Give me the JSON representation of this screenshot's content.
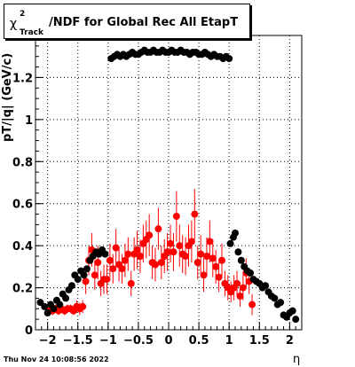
{
  "header": {
    "title_symbol": "χ",
    "title_sup": "2",
    "title_sub": "Track",
    "title_main": "/NDF for Global Rec All EtapT"
  },
  "footer": {
    "timestamp": "Thu Nov 24 10:08:56 2022"
  },
  "chart_data": {
    "type": "scatter",
    "title": "χ²_Track/NDF for Global Rec All EtapT",
    "xlabel": "η",
    "ylabel": "pT/|q| (GeV/c)",
    "xlim": [
      -2.2,
      2.2
    ],
    "ylim": [
      0,
      1.4
    ],
    "grid": true,
    "colors": {
      "black_series": "#000000",
      "red_series": "#ff0000"
    },
    "x_ticks": [
      {
        "value": -2,
        "label": "−2"
      },
      {
        "value": -1.5,
        "label": "−1.5"
      },
      {
        "value": -1,
        "label": "−1"
      },
      {
        "value": -0.5,
        "label": "−0.5"
      },
      {
        "value": 0,
        "label": "0"
      },
      {
        "value": 0.5,
        "label": "0.5"
      },
      {
        "value": 1,
        "label": "1"
      },
      {
        "value": 1.5,
        "label": "1.5"
      },
      {
        "value": 2,
        "label": "2"
      }
    ],
    "y_ticks": [
      {
        "value": 0,
        "label": "0"
      },
      {
        "value": 0.2,
        "label": "0.2"
      },
      {
        "value": 0.4,
        "label": "0.4"
      },
      {
        "value": 0.6,
        "label": "0.6"
      },
      {
        "value": 0.8,
        "label": "0.8"
      },
      {
        "value": 1.0,
        "label": "1"
      },
      {
        "value": 1.2,
        "label": "1.2"
      }
    ],
    "series": [
      {
        "color": "#000000",
        "points": [
          {
            "x": -2.12,
            "y": 0.13
          },
          {
            "x": -2.05,
            "y": 0.11
          },
          {
            "x": -2.0,
            "y": 0.08
          },
          {
            "x": -1.95,
            "y": 0.12
          },
          {
            "x": -1.9,
            "y": 0.1
          },
          {
            "x": -1.85,
            "y": 0.14
          },
          {
            "x": -1.8,
            "y": 0.12
          },
          {
            "x": -1.75,
            "y": 0.17
          },
          {
            "x": -1.7,
            "y": 0.15
          },
          {
            "x": -1.65,
            "y": 0.19
          },
          {
            "x": -1.6,
            "y": 0.21
          },
          {
            "x": -1.55,
            "y": 0.26
          },
          {
            "x": -1.5,
            "y": 0.24
          },
          {
            "x": -1.45,
            "y": 0.28
          },
          {
            "x": -1.4,
            "y": 0.26
          },
          {
            "x": -1.35,
            "y": 0.29
          },
          {
            "x": -1.3,
            "y": 0.33
          },
          {
            "x": -1.25,
            "y": 0.35
          },
          {
            "x": -1.2,
            "y": 0.37
          },
          {
            "x": -1.15,
            "y": 0.36
          },
          {
            "x": -1.1,
            "y": 0.38
          },
          {
            "x": -1.05,
            "y": 0.36
          },
          {
            "x": -0.95,
            "y": 1.29
          },
          {
            "x": -0.9,
            "y": 1.3
          },
          {
            "x": -0.85,
            "y": 1.31
          },
          {
            "x": -0.8,
            "y": 1.3
          },
          {
            "x": -0.75,
            "y": 1.31
          },
          {
            "x": -0.7,
            "y": 1.3
          },
          {
            "x": -0.65,
            "y": 1.31
          },
          {
            "x": -0.6,
            "y": 1.32
          },
          {
            "x": -0.55,
            "y": 1.31
          },
          {
            "x": -0.5,
            "y": 1.31
          },
          {
            "x": -0.45,
            "y": 1.32
          },
          {
            "x": -0.4,
            "y": 1.33
          },
          {
            "x": -0.35,
            "y": 1.32
          },
          {
            "x": -0.3,
            "y": 1.32
          },
          {
            "x": -0.25,
            "y": 1.33
          },
          {
            "x": -0.2,
            "y": 1.32
          },
          {
            "x": -0.15,
            "y": 1.32
          },
          {
            "x": -0.1,
            "y": 1.33
          },
          {
            "x": -0.05,
            "y": 1.32
          },
          {
            "x": 0.0,
            "y": 1.32
          },
          {
            "x": 0.05,
            "y": 1.33
          },
          {
            "x": 0.1,
            "y": 1.32
          },
          {
            "x": 0.15,
            "y": 1.32
          },
          {
            "x": 0.2,
            "y": 1.33
          },
          {
            "x": 0.25,
            "y": 1.32
          },
          {
            "x": 0.3,
            "y": 1.32
          },
          {
            "x": 0.35,
            "y": 1.31
          },
          {
            "x": 0.4,
            "y": 1.32
          },
          {
            "x": 0.45,
            "y": 1.32
          },
          {
            "x": 0.5,
            "y": 1.31
          },
          {
            "x": 0.55,
            "y": 1.31
          },
          {
            "x": 0.6,
            "y": 1.32
          },
          {
            "x": 0.65,
            "y": 1.31
          },
          {
            "x": 0.7,
            "y": 1.3
          },
          {
            "x": 0.75,
            "y": 1.31
          },
          {
            "x": 0.8,
            "y": 1.3
          },
          {
            "x": 0.85,
            "y": 1.3
          },
          {
            "x": 0.9,
            "y": 1.29
          },
          {
            "x": 0.95,
            "y": 1.3
          },
          {
            "x": 1.0,
            "y": 1.29
          },
          {
            "x": 1.02,
            "y": 0.41
          },
          {
            "x": 1.07,
            "y": 0.44
          },
          {
            "x": 1.1,
            "y": 0.46
          },
          {
            "x": 1.15,
            "y": 0.37
          },
          {
            "x": 1.2,
            "y": 0.33
          },
          {
            "x": 1.25,
            "y": 0.3
          },
          {
            "x": 1.3,
            "y": 0.28
          },
          {
            "x": 1.35,
            "y": 0.27
          },
          {
            "x": 1.4,
            "y": 0.24
          },
          {
            "x": 1.45,
            "y": 0.23
          },
          {
            "x": 1.5,
            "y": 0.22
          },
          {
            "x": 1.55,
            "y": 0.2
          },
          {
            "x": 1.6,
            "y": 0.21
          },
          {
            "x": 1.65,
            "y": 0.18
          },
          {
            "x": 1.7,
            "y": 0.16
          },
          {
            "x": 1.75,
            "y": 0.15
          },
          {
            "x": 1.8,
            "y": 0.12
          },
          {
            "x": 1.85,
            "y": 0.13
          },
          {
            "x": 1.9,
            "y": 0.07
          },
          {
            "x": 1.95,
            "y": 0.06
          },
          {
            "x": 2.0,
            "y": 0.08
          },
          {
            "x": 2.05,
            "y": 0.09
          },
          {
            "x": 2.1,
            "y": 0.05
          }
        ]
      },
      {
        "color": "#ff0000",
        "points": [
          {
            "x": -1.97,
            "y": 0.09,
            "err": 0.02
          },
          {
            "x": -1.92,
            "y": 0.09,
            "err": 0.02
          },
          {
            "x": -1.87,
            "y": 0.1,
            "err": 0.02
          },
          {
            "x": -1.82,
            "y": 0.09,
            "err": 0.02
          },
          {
            "x": -1.77,
            "y": 0.1,
            "err": 0.02
          },
          {
            "x": -1.72,
            "y": 0.09,
            "err": 0.02
          },
          {
            "x": -1.67,
            "y": 0.1,
            "err": 0.02
          },
          {
            "x": -1.62,
            "y": 0.1,
            "err": 0.02
          },
          {
            "x": -1.57,
            "y": 0.09,
            "err": 0.02
          },
          {
            "x": -1.52,
            "y": 0.11,
            "err": 0.03
          },
          {
            "x": -1.47,
            "y": 0.1,
            "err": 0.03
          },
          {
            "x": -1.42,
            "y": 0.11,
            "err": 0.03
          },
          {
            "x": -1.37,
            "y": 0.23,
            "err": 0.06
          },
          {
            "x": -1.32,
            "y": 0.33,
            "err": 0.07
          },
          {
            "x": -1.27,
            "y": 0.38,
            "err": 0.08
          },
          {
            "x": -1.22,
            "y": 0.26,
            "err": 0.07
          },
          {
            "x": -1.17,
            "y": 0.32,
            "err": 0.08
          },
          {
            "x": -1.12,
            "y": 0.22,
            "err": 0.06
          },
          {
            "x": -1.07,
            "y": 0.24,
            "err": 0.07
          },
          {
            "x": -1.02,
            "y": 0.24,
            "err": 0.07
          },
          {
            "x": -0.97,
            "y": 0.33,
            "err": 0.08
          },
          {
            "x": -0.92,
            "y": 0.29,
            "err": 0.07
          },
          {
            "x": -0.87,
            "y": 0.39,
            "err": 0.09
          },
          {
            "x": -0.82,
            "y": 0.31,
            "err": 0.08
          },
          {
            "x": -0.77,
            "y": 0.29,
            "err": 0.07
          },
          {
            "x": -0.72,
            "y": 0.33,
            "err": 0.08
          },
          {
            "x": -0.67,
            "y": 0.36,
            "err": 0.08
          },
          {
            "x": -0.62,
            "y": 0.22,
            "err": 0.06
          },
          {
            "x": -0.57,
            "y": 0.36,
            "err": 0.08
          },
          {
            "x": -0.52,
            "y": 0.38,
            "err": 0.09
          },
          {
            "x": -0.47,
            "y": 0.35,
            "err": 0.08
          },
          {
            "x": -0.42,
            "y": 0.41,
            "err": 0.09
          },
          {
            "x": -0.37,
            "y": 0.43,
            "err": 0.09
          },
          {
            "x": -0.32,
            "y": 0.45,
            "err": 0.1
          },
          {
            "x": -0.27,
            "y": 0.32,
            "err": 0.08
          },
          {
            "x": -0.22,
            "y": 0.31,
            "err": 0.08
          },
          {
            "x": -0.17,
            "y": 0.48,
            "err": 0.1
          },
          {
            "x": -0.12,
            "y": 0.32,
            "err": 0.08
          },
          {
            "x": -0.07,
            "y": 0.35,
            "err": 0.08
          },
          {
            "x": -0.02,
            "y": 0.37,
            "err": 0.09
          },
          {
            "x": 0.03,
            "y": 0.41,
            "err": 0.09
          },
          {
            "x": 0.08,
            "y": 0.37,
            "err": 0.09
          },
          {
            "x": 0.13,
            "y": 0.54,
            "err": 0.12
          },
          {
            "x": 0.18,
            "y": 0.4,
            "err": 0.1
          },
          {
            "x": 0.23,
            "y": 0.36,
            "err": 0.09
          },
          {
            "x": 0.28,
            "y": 0.35,
            "err": 0.09
          },
          {
            "x": 0.33,
            "y": 0.4,
            "err": 0.1
          },
          {
            "x": 0.38,
            "y": 0.42,
            "err": 0.1
          },
          {
            "x": 0.43,
            "y": 0.55,
            "err": 0.12
          },
          {
            "x": 0.48,
            "y": 0.32,
            "err": 0.08
          },
          {
            "x": 0.53,
            "y": 0.36,
            "err": 0.09
          },
          {
            "x": 0.58,
            "y": 0.26,
            "err": 0.08
          },
          {
            "x": 0.63,
            "y": 0.35,
            "err": 0.09
          },
          {
            "x": 0.68,
            "y": 0.42,
            "err": 0.1
          },
          {
            "x": 0.73,
            "y": 0.34,
            "err": 0.09
          },
          {
            "x": 0.78,
            "y": 0.3,
            "err": 0.08
          },
          {
            "x": 0.83,
            "y": 0.25,
            "err": 0.07
          },
          {
            "x": 0.88,
            "y": 0.33,
            "err": 0.08
          },
          {
            "x": 0.93,
            "y": 0.22,
            "err": 0.06
          },
          {
            "x": 0.98,
            "y": 0.2,
            "err": 0.06
          },
          {
            "x": 1.03,
            "y": 0.18,
            "err": 0.05
          },
          {
            "x": 1.08,
            "y": 0.2,
            "err": 0.06
          },
          {
            "x": 1.13,
            "y": 0.22,
            "err": 0.06
          },
          {
            "x": 1.18,
            "y": 0.16,
            "err": 0.05
          },
          {
            "x": 1.23,
            "y": 0.2,
            "err": 0.06
          },
          {
            "x": 1.28,
            "y": 0.27,
            "err": 0.07
          },
          {
            "x": 1.33,
            "y": 0.23,
            "err": 0.06
          },
          {
            "x": 1.38,
            "y": 0.12,
            "err": 0.05
          }
        ]
      }
    ]
  }
}
